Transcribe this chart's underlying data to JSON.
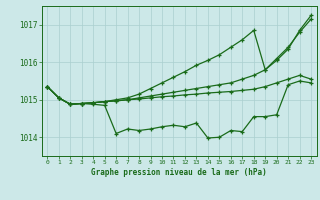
{
  "xlabel": "Graphe pression niveau de la mer (hPa)",
  "background_color": "#cce8e8",
  "line_color": "#1a6b1a",
  "grid_color": "#aacfcf",
  "ylim": [
    1013.5,
    1017.5
  ],
  "xlim": [
    -0.5,
    23.5
  ],
  "yticks": [
    1014,
    1015,
    1016,
    1017
  ],
  "xticks": [
    0,
    1,
    2,
    3,
    4,
    5,
    6,
    7,
    8,
    9,
    10,
    11,
    12,
    13,
    14,
    15,
    16,
    17,
    18,
    19,
    20,
    21,
    22,
    23
  ],
  "series": [
    [
      1015.35,
      1015.05,
      1014.88,
      1014.9,
      1014.88,
      1014.85,
      1014.1,
      1014.22,
      1014.18,
      1014.22,
      1014.28,
      1014.32,
      1014.28,
      1014.38,
      1013.98,
      1014.0,
      1014.18,
      1014.15,
      1014.55,
      1014.55,
      1014.6,
      1015.4,
      1015.5,
      1015.45
    ],
    [
      1015.35,
      1015.05,
      1014.88,
      1014.9,
      1014.92,
      1014.95,
      1014.97,
      1015.0,
      1015.02,
      1015.05,
      1015.08,
      1015.1,
      1015.13,
      1015.15,
      1015.18,
      1015.2,
      1015.22,
      1015.25,
      1015.28,
      1015.35,
      1015.45,
      1015.55,
      1015.65,
      1015.55
    ],
    [
      1015.35,
      1015.05,
      1014.88,
      1014.9,
      1014.92,
      1014.95,
      1014.97,
      1015.0,
      1015.05,
      1015.1,
      1015.15,
      1015.2,
      1015.25,
      1015.3,
      1015.35,
      1015.4,
      1015.45,
      1015.55,
      1015.65,
      1015.8,
      1016.1,
      1016.4,
      1016.8,
      1017.15
    ],
    [
      1015.35,
      1015.05,
      1014.88,
      1014.9,
      1014.92,
      1014.95,
      1015.0,
      1015.05,
      1015.15,
      1015.3,
      1015.45,
      1015.6,
      1015.75,
      1015.92,
      1016.05,
      1016.2,
      1016.4,
      1016.6,
      1016.85,
      1015.8,
      1016.05,
      1016.35,
      1016.85,
      1017.25
    ]
  ]
}
